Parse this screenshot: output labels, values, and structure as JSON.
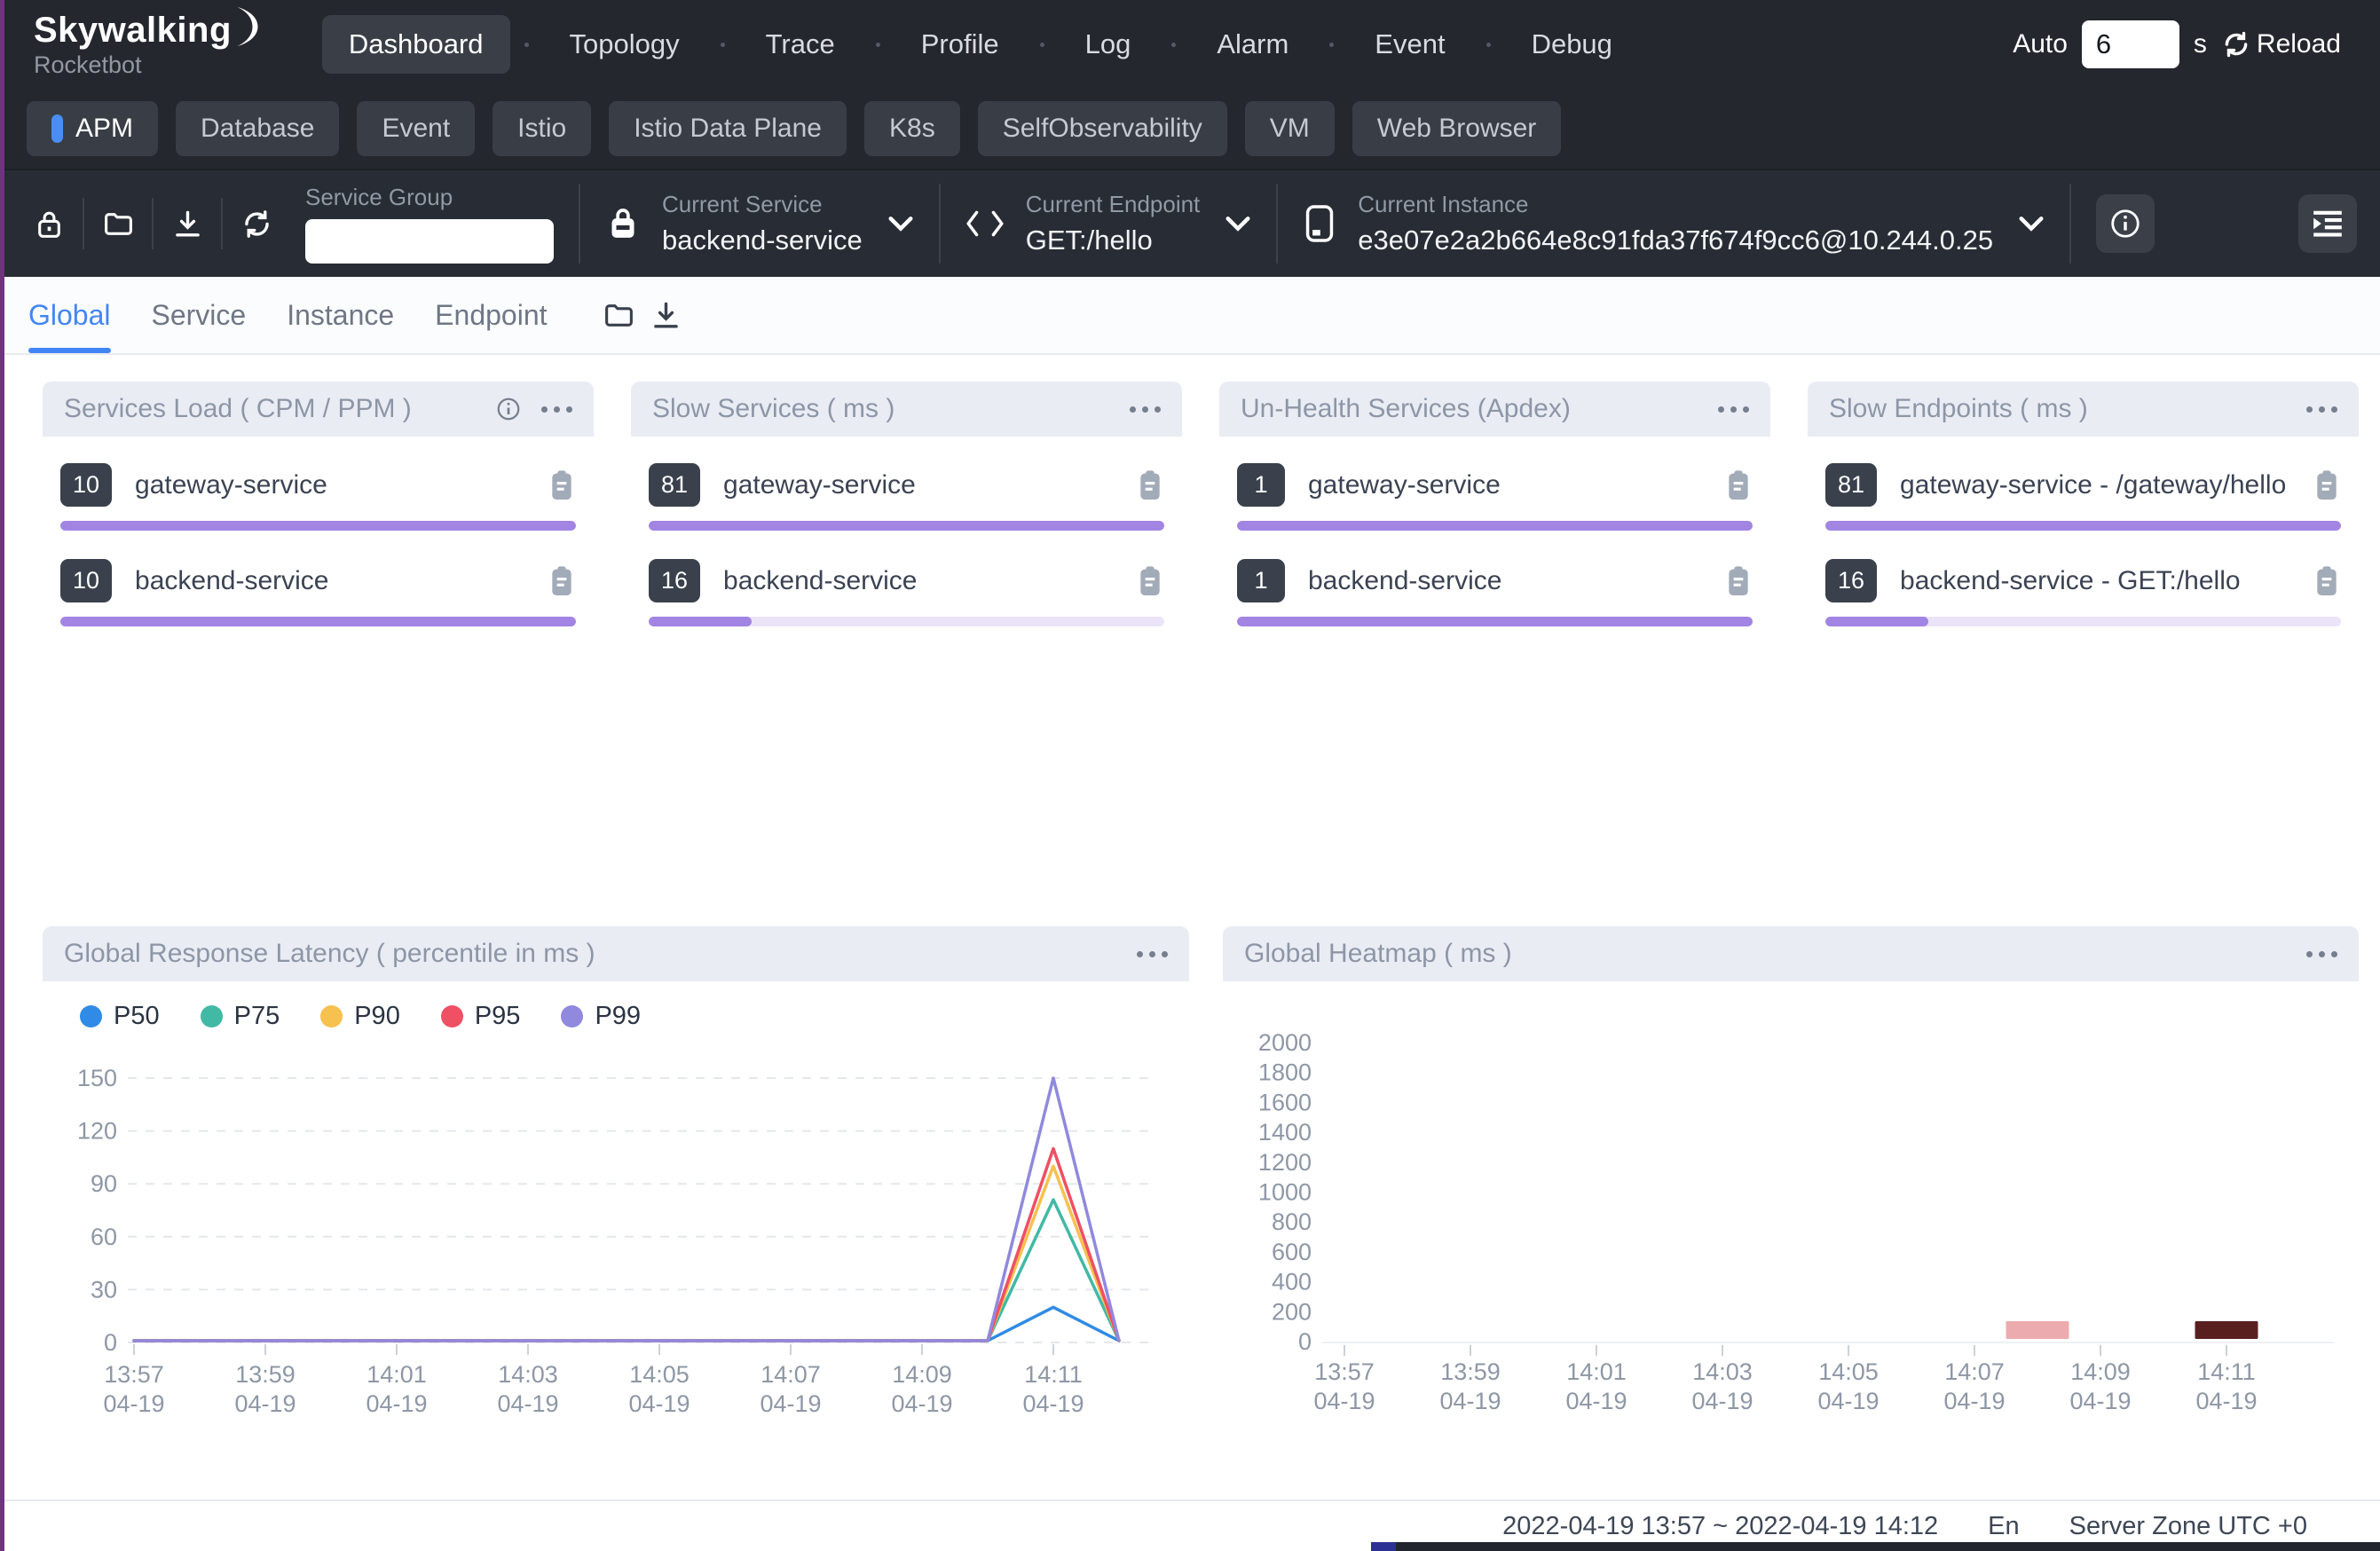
{
  "nav": {
    "brand_title": "Skywalking",
    "brand_subtitle": "Rocketbot",
    "items": [
      {
        "label": "Dashboard",
        "active": true
      },
      {
        "label": "Topology"
      },
      {
        "label": "Trace"
      },
      {
        "label": "Profile"
      },
      {
        "label": "Log"
      },
      {
        "label": "Alarm"
      },
      {
        "label": "Event"
      },
      {
        "label": "Debug"
      }
    ],
    "auto_label": "Auto",
    "auto_value": "6",
    "auto_unit": "s",
    "reload_label": "Reload"
  },
  "dashboard_tabs": {
    "active": "APM",
    "items": [
      {
        "label": "APM"
      },
      {
        "label": "Database"
      },
      {
        "label": "Event"
      },
      {
        "label": "Istio"
      },
      {
        "label": "Istio Data Plane"
      },
      {
        "label": "K8s"
      },
      {
        "label": "SelfObservability"
      },
      {
        "label": "VM"
      },
      {
        "label": "Web Browser"
      }
    ]
  },
  "toolbar": {
    "service_group_label": "Service Group",
    "service_group_value": "",
    "current_service": {
      "label": "Current Service",
      "value": "backend-service"
    },
    "current_endpoint": {
      "label": "Current Endpoint",
      "value": "GET:/hello"
    },
    "current_instance": {
      "label": "Current Instance",
      "value": "e3e07e2a2b664e8c91fda37f674f9cc6@10.244.0.25"
    }
  },
  "view_tabs": {
    "active": "Global",
    "items": [
      {
        "label": "Global"
      },
      {
        "label": "Service"
      },
      {
        "label": "Instance"
      },
      {
        "label": "Endpoint"
      }
    ]
  },
  "cards": [
    {
      "title": "Services Load ( CPM / PPM )",
      "has_info_icon": true,
      "items": [
        {
          "value": "10",
          "name": "gateway-service",
          "bar_pct": 100
        },
        {
          "value": "10",
          "name": "backend-service",
          "bar_pct": 100
        }
      ]
    },
    {
      "title": "Slow Services ( ms )",
      "items": [
        {
          "value": "81",
          "name": "gateway-service",
          "bar_pct": 100
        },
        {
          "value": "16",
          "name": "backend-service",
          "bar_pct": 20
        }
      ]
    },
    {
      "title": "Un-Health Services (Apdex)",
      "items": [
        {
          "value": "1",
          "name": "gateway-service",
          "bar_pct": 100
        },
        {
          "value": "1",
          "name": "backend-service",
          "bar_pct": 100
        }
      ]
    },
    {
      "title": "Slow Endpoints ( ms )",
      "items": [
        {
          "value": "81",
          "name": "gateway-service - /gateway/hello",
          "bar_pct": 100
        },
        {
          "value": "16",
          "name": "backend-service - GET:/hello",
          "bar_pct": 20
        }
      ]
    }
  ],
  "chart_data": [
    {
      "type": "line",
      "title": "Global Response Latency ( percentile in ms )",
      "x": [
        "13:57",
        "13:58",
        "13:59",
        "14:00",
        "14:01",
        "14:02",
        "14:03",
        "14:04",
        "14:05",
        "14:06",
        "14:07",
        "14:08",
        "14:09",
        "14:10",
        "14:11",
        "14:12"
      ],
      "x_date": "04-19",
      "xtick_labels": [
        "13:57",
        "13:59",
        "14:01",
        "14:03",
        "14:05",
        "14:07",
        "14:09",
        "14:11"
      ],
      "ylim": [
        0,
        150
      ],
      "yticks": [
        0,
        30,
        60,
        90,
        120,
        150
      ],
      "grid": "dashed",
      "legend_position": "top-left",
      "series": [
        {
          "name": "P50",
          "color": "#2f8be5",
          "values": [
            1,
            1,
            1,
            1,
            1,
            1,
            1,
            1,
            1,
            1,
            1,
            1,
            1,
            1,
            20,
            1
          ]
        },
        {
          "name": "P75",
          "color": "#41b9a5",
          "values": [
            1,
            1,
            1,
            1,
            1,
            1,
            1,
            1,
            1,
            1,
            1,
            1,
            1,
            1,
            81,
            1
          ]
        },
        {
          "name": "P90",
          "color": "#f6c14e",
          "values": [
            1,
            1,
            1,
            1,
            1,
            1,
            1,
            1,
            1,
            1,
            1,
            1,
            1,
            1,
            100,
            1
          ]
        },
        {
          "name": "P95",
          "color": "#ef5064",
          "values": [
            1,
            1,
            1,
            1,
            1,
            1,
            1,
            1,
            1,
            1,
            1,
            1,
            1,
            1,
            110,
            1
          ]
        },
        {
          "name": "P99",
          "color": "#9089de",
          "values": [
            1,
            1,
            1,
            1,
            1,
            1,
            1,
            1,
            1,
            1,
            1,
            1,
            1,
            1,
            150,
            1
          ]
        }
      ]
    },
    {
      "type": "heatmap",
      "title": "Global Heatmap ( ms )",
      "x_start": "13:57",
      "xtick_labels": [
        "13:57",
        "13:59",
        "14:01",
        "14:03",
        "14:05",
        "14:07",
        "14:09",
        "14:11"
      ],
      "x_date": "04-19",
      "ylim": [
        0,
        2000
      ],
      "yticks": [
        0,
        200,
        400,
        600,
        800,
        1000,
        1200,
        1400,
        1600,
        1800,
        2000
      ],
      "cells": [
        {
          "time": "14:08",
          "bucket_ms": "0-200",
          "color": "#ecabae"
        },
        {
          "time": "14:11",
          "bucket_ms": "0-200",
          "color": "#591f1f"
        }
      ]
    }
  ],
  "colors": {
    "accent_blue": "#4a8df8",
    "tab_active_blue": "#4286f5",
    "bar_purple": "#a284e3",
    "bar_track": "#ebe4f9",
    "heatmap_low": "#ecabae",
    "heatmap_high": "#591f1f"
  },
  "footer": {
    "time_range": "2022-04-19 13:57 ~ 2022-04-19 14:12",
    "language": "En",
    "server_zone": "Server Zone UTC +0"
  },
  "icon_names": [
    "moon-logo",
    "reload",
    "lock",
    "folder-open",
    "download",
    "refresh",
    "service-lock",
    "endpoint-code",
    "instance-device",
    "chevron-down",
    "info-circle",
    "indent",
    "folder",
    "info-circle-small",
    "ellipsis-menu",
    "clipboard"
  ]
}
